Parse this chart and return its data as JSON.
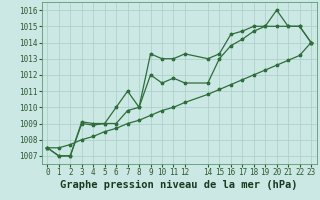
{
  "title": "Graphe pression niveau de la mer (hPa)",
  "bg_color": "#cce8e4",
  "grid_color": "#aaccc8",
  "line_color": "#2d6e3a",
  "ylim": [
    1006.5,
    1016.5
  ],
  "xlim": [
    -0.5,
    23.5
  ],
  "yticks": [
    1007,
    1008,
    1009,
    1010,
    1011,
    1012,
    1013,
    1014,
    1015,
    1016
  ],
  "xticks": [
    0,
    1,
    2,
    3,
    4,
    5,
    6,
    7,
    8,
    9,
    10,
    11,
    12,
    14,
    15,
    16,
    17,
    18,
    19,
    20,
    21,
    22,
    23
  ],
  "line1_x": [
    0,
    1,
    2,
    3,
    4,
    5,
    6,
    7,
    8,
    9,
    10,
    11,
    12,
    14,
    15,
    16,
    17,
    18,
    19,
    20,
    21,
    22,
    23
  ],
  "line1_y": [
    1007.5,
    1007.0,
    1007.0,
    1009.1,
    1009.0,
    1009.0,
    1010.0,
    1011.0,
    1010.0,
    1013.3,
    1013.0,
    1013.0,
    1013.3,
    1013.0,
    1013.3,
    1014.5,
    1014.7,
    1015.0,
    1015.0,
    1016.0,
    1015.0,
    1015.0,
    1014.0
  ],
  "line2_x": [
    0,
    1,
    2,
    3,
    4,
    5,
    6,
    7,
    8,
    9,
    10,
    11,
    12,
    14,
    15,
    16,
    17,
    18,
    19,
    20,
    21,
    22,
    23
  ],
  "line2_y": [
    1007.5,
    1007.0,
    1007.0,
    1009.0,
    1008.9,
    1009.0,
    1009.0,
    1009.8,
    1010.0,
    1012.0,
    1011.5,
    1011.8,
    1011.5,
    1011.5,
    1013.0,
    1013.8,
    1014.2,
    1014.7,
    1015.0,
    1015.0,
    1015.0,
    1015.0,
    1014.0
  ],
  "line3_x": [
    0,
    1,
    2,
    3,
    4,
    5,
    6,
    7,
    8,
    9,
    10,
    11,
    12,
    14,
    15,
    16,
    17,
    18,
    19,
    20,
    21,
    22,
    23
  ],
  "line3_y": [
    1007.5,
    1007.5,
    1007.7,
    1008.0,
    1008.2,
    1008.5,
    1008.7,
    1009.0,
    1009.2,
    1009.5,
    1009.8,
    1010.0,
    1010.3,
    1010.8,
    1011.1,
    1011.4,
    1011.7,
    1012.0,
    1012.3,
    1012.6,
    1012.9,
    1013.2,
    1014.0
  ],
  "marker_size": 2.5,
  "linewidth": 0.9,
  "tick_fontsize": 5.5,
  "title_fontsize": 7.5
}
